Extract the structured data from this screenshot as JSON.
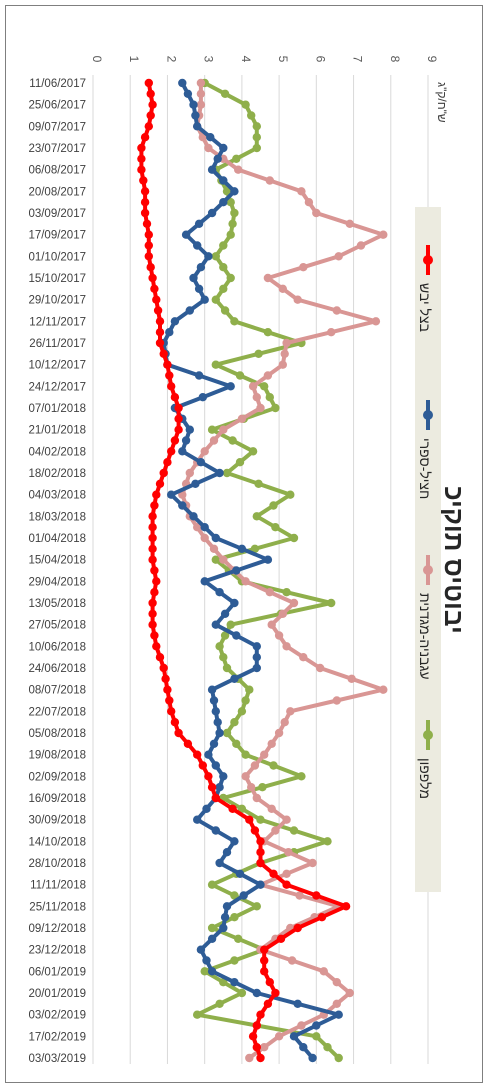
{
  "chart_data": {
    "type": "line",
    "title": "יבוטיס תוקיכ",
    "ylabel": "ש\"ח/ק\"ג",
    "ylim": [
      0,
      9
    ],
    "yticks": [
      0,
      1,
      2,
      3,
      4,
      5,
      6,
      7,
      8,
      9
    ],
    "categories": [
      "11/06/2017",
      "25/06/2017",
      "09/07/2017",
      "23/07/2017",
      "06/08/2017",
      "20/08/2017",
      "03/09/2017",
      "17/09/2017",
      "01/10/2017",
      "15/10/2017",
      "29/10/2017",
      "12/11/2017",
      "26/11/2017",
      "10/12/2017",
      "24/12/2017",
      "07/01/2018",
      "21/01/2018",
      "04/02/2018",
      "18/02/2018",
      "04/03/2018",
      "18/03/2018",
      "01/04/2018",
      "15/04/2018",
      "29/04/2018",
      "13/05/2018",
      "27/05/2018",
      "10/06/2018",
      "24/06/2018",
      "08/07/2018",
      "22/07/2018",
      "05/08/2018",
      "19/08/2018",
      "02/09/2018",
      "16/09/2018",
      "30/09/2018",
      "14/10/2018",
      "28/10/2018",
      "11/11/2018",
      "25/11/2018",
      "09/12/2018",
      "23/12/2018",
      "06/01/2019",
      "20/01/2019",
      "03/02/2019",
      "17/02/2019",
      "03/03/2019"
    ],
    "series": [
      {
        "name": "מלפפון",
        "color": "#8faf4b",
        "values": [
          3.0,
          4.1,
          4.4,
          4.4,
          3.3,
          3.6,
          3.8,
          3.7,
          3.3,
          3.7,
          3.3,
          3.8,
          5.6,
          3.3,
          4.6,
          4.9,
          3.2,
          4.3,
          3.6,
          5.3,
          4.4,
          5.4,
          3.3,
          4.0,
          6.4,
          3.7,
          3.4,
          3.6,
          4.2,
          4.0,
          3.6,
          4.1,
          5.6,
          3.5,
          4.5,
          6.3,
          4.5,
          3.2,
          4.4,
          3.2,
          4.6,
          3.0,
          4.0,
          2.8,
          6.0,
          6.6
        ]
      },
      {
        "name": "עגבניה-מגדנית",
        "color": "#d99694",
        "values": [
          2.9,
          2.9,
          2.8,
          3.1,
          3.9,
          5.6,
          6.0,
          7.8,
          6.6,
          4.7,
          5.5,
          7.6,
          5.2,
          5.1,
          4.3,
          4.5,
          3.5,
          3.0,
          2.6,
          2.4,
          2.6,
          3.0,
          3.5,
          4.1,
          5.4,
          4.8,
          5.2,
          6.1,
          7.8,
          5.3,
          5.0,
          4.6,
          4.1,
          4.4,
          5.2,
          4.6,
          5.9,
          4.5,
          6.6,
          5.3,
          4.5,
          6.2,
          6.9,
          6.2,
          5.0,
          4.2
        ]
      },
      {
        "name": "חציל-ספרי",
        "color": "#2e5c96",
        "values": [
          2.4,
          2.7,
          2.8,
          3.5,
          3.2,
          3.8,
          3.2,
          2.5,
          3.1,
          2.7,
          3.0,
          2.2,
          1.9,
          2.0,
          3.7,
          2.2,
          2.6,
          2.4,
          3.4,
          2.1,
          2.7,
          3.3,
          4.7,
          3.0,
          3.8,
          3.3,
          4.4,
          4.4,
          3.2,
          3.3,
          3.4,
          3.1,
          3.5,
          3.3,
          2.8,
          3.8,
          3.4,
          4.5,
          3.6,
          3.5,
          2.9,
          3.2,
          4.4,
          6.6,
          5.4,
          5.9
        ]
      },
      {
        "name": "בצל יבש",
        "color": "#ff0000",
        "values": [
          1.5,
          1.6,
          1.5,
          1.3,
          1.3,
          1.4,
          1.4,
          1.5,
          1.5,
          1.6,
          1.7,
          1.8,
          1.8,
          2.0,
          2.1,
          2.3,
          2.3,
          2.1,
          1.9,
          1.7,
          1.6,
          1.6,
          1.6,
          1.7,
          1.6,
          1.6,
          1.7,
          1.9,
          2.0,
          2.1,
          2.3,
          2.8,
          3.1,
          3.3,
          4.2,
          4.5,
          4.5,
          5.2,
          6.8,
          5.5,
          4.6,
          4.6,
          4.9,
          4.5,
          4.3,
          4.5
        ]
      }
    ]
  }
}
